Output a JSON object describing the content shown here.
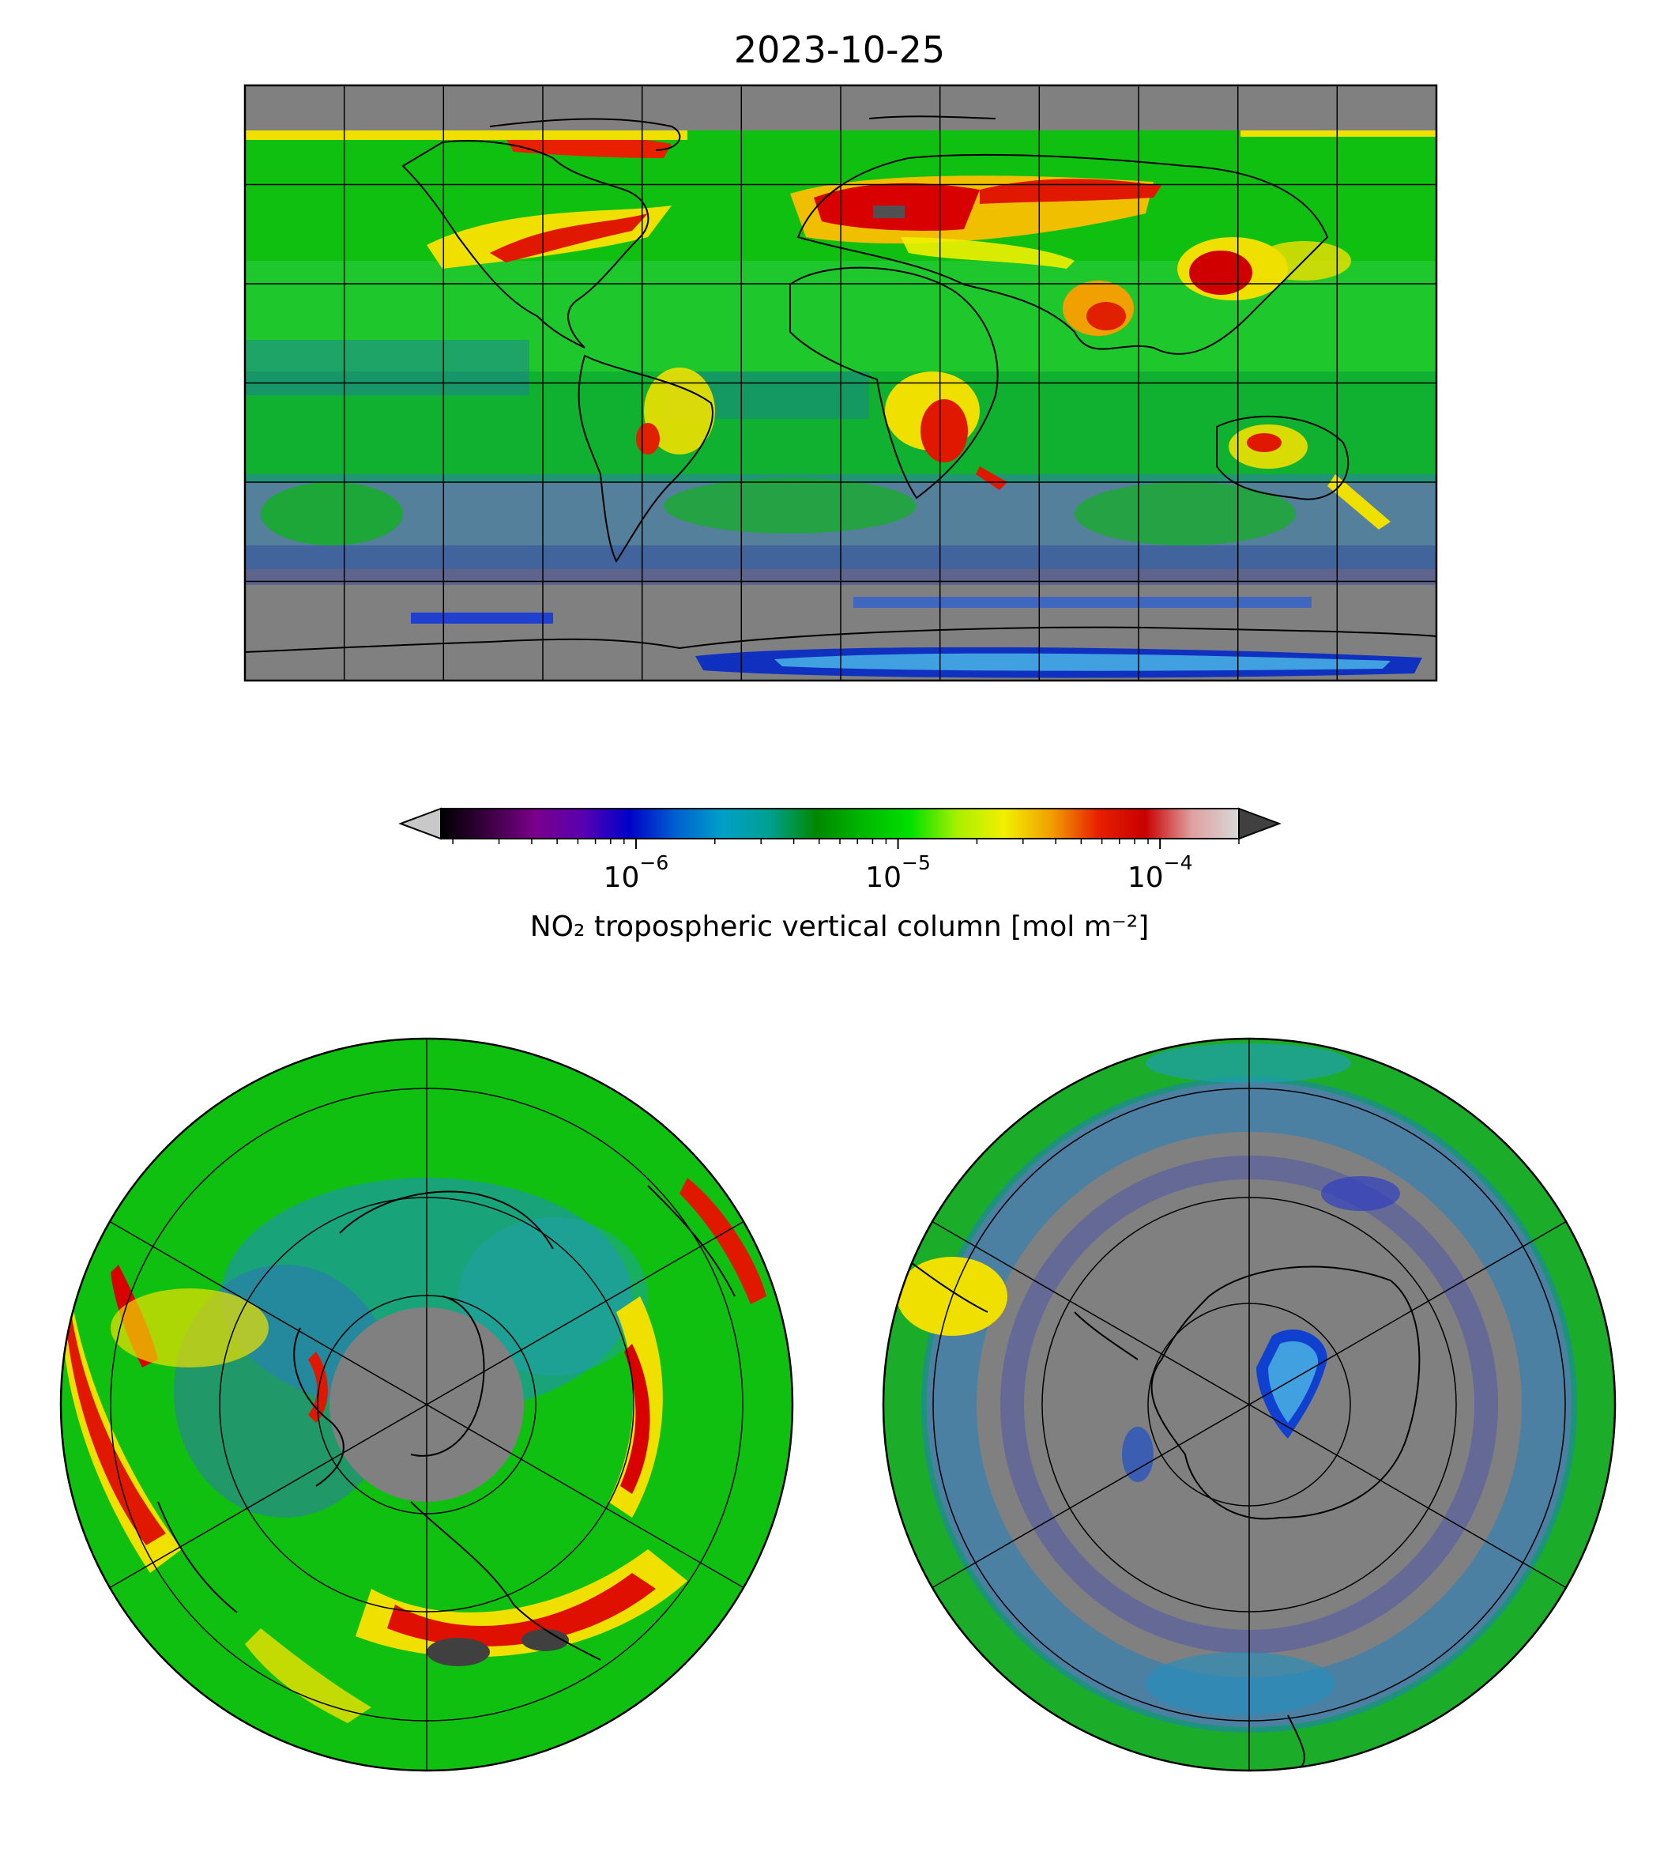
{
  "title": "2023-10-25",
  "colorbar": {
    "label": "NO₂ tropospheric vertical column [mol m⁻²]",
    "scale": "log",
    "range": [
      1.8e-07,
      0.0002
    ],
    "ticks": [
      {
        "base": "10",
        "exp": "−6",
        "value": 1e-06
      },
      {
        "base": "10",
        "exp": "−5",
        "value": 1e-05
      },
      {
        "base": "10",
        "exp": "−4",
        "value": 0.0001
      }
    ],
    "extend": "both",
    "under_color": "#c8c8c8",
    "over_color": "#404040",
    "colors": [
      "#000000",
      "#3a0040",
      "#7a008a",
      "#5a00b0",
      "#0000c8",
      "#0060d0",
      "#00a0c8",
      "#00a090",
      "#008800",
      "#00b800",
      "#00e000",
      "#a8f000",
      "#f0f000",
      "#f0a000",
      "#e82000",
      "#c80000",
      "#e0a0a0",
      "#d8d8d8"
    ]
  },
  "maps": [
    {
      "name": "global",
      "projection": "plate-carree"
    },
    {
      "name": "north-polar",
      "projection": "north-polar-stereographic"
    },
    {
      "name": "south-polar",
      "projection": "south-polar-stereographic"
    }
  ],
  "colors": {
    "no_data": "#808080",
    "coastline": "#000000",
    "gridline": "#000000"
  }
}
